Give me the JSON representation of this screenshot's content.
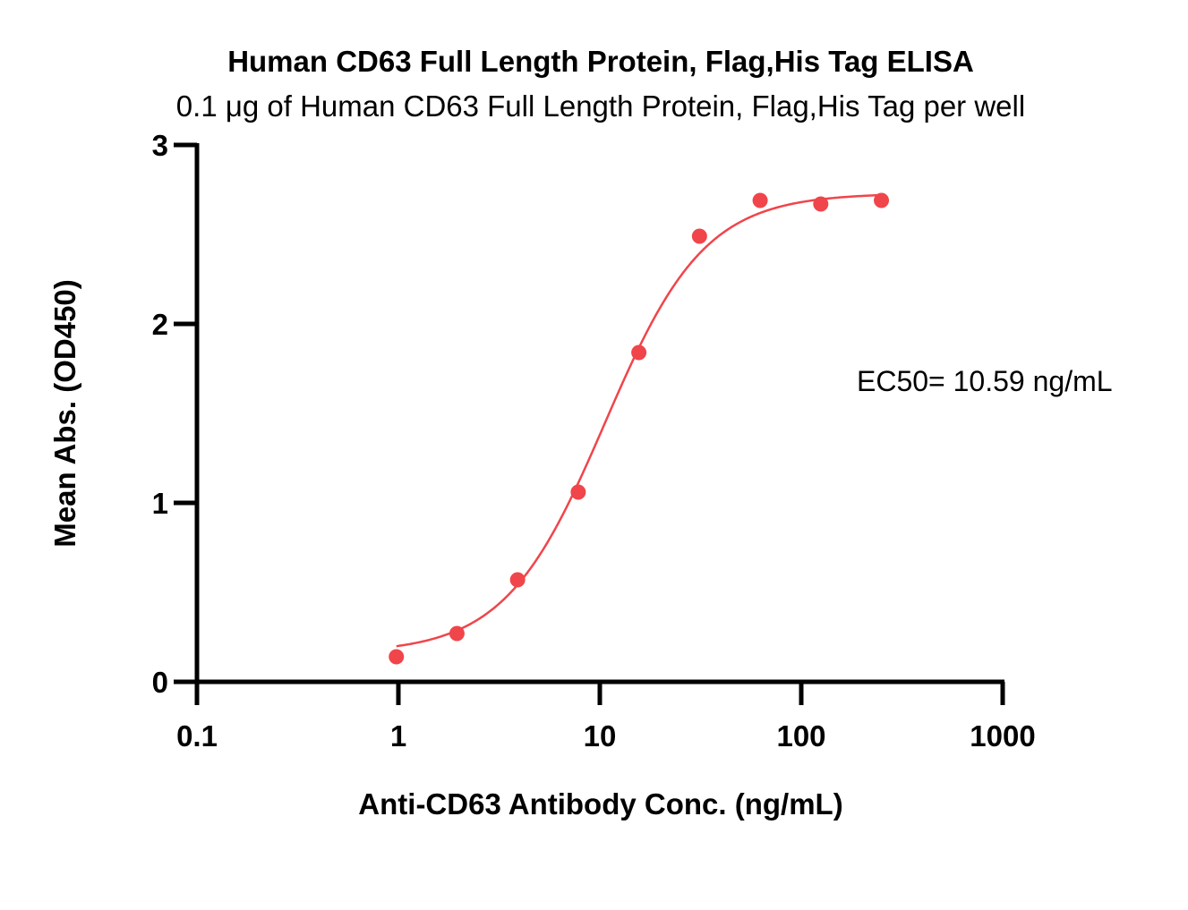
{
  "chart_data": {
    "type": "scatter",
    "title": "Human CD63 Full Length Protein, Flag,His Tag ELISA",
    "subtitle": "0.1 μg of Human CD63 Full Length Protein, Flag,His Tag per well",
    "xlabel": "Anti-CD63 Antibody Conc. (ng/mL)",
    "ylabel": "Mean Abs. (OD450)",
    "xscale": "log",
    "xlim": [
      0.1,
      1000
    ],
    "ylim": [
      0,
      3
    ],
    "x_ticks": [
      {
        "value": 0.1,
        "label": "0.1"
      },
      {
        "value": 1,
        "label": "1"
      },
      {
        "value": 10,
        "label": "10"
      },
      {
        "value": 100,
        "label": "100"
      },
      {
        "value": 1000,
        "label": "1000"
      }
    ],
    "y_ticks": [
      {
        "value": 0,
        "label": "0"
      },
      {
        "value": 1,
        "label": "1"
      },
      {
        "value": 2,
        "label": "2"
      },
      {
        "value": 3,
        "label": "3"
      }
    ],
    "grid": false,
    "series": [
      {
        "color": "#f0454a",
        "marker": "circle",
        "x": [
          0.977,
          1.953,
          3.906,
          7.813,
          15.625,
          31.25,
          62.5,
          125,
          250
        ],
        "y": [
          0.14,
          0.27,
          0.57,
          1.06,
          1.84,
          2.49,
          2.69,
          2.67,
          2.69
        ],
        "fit": {
          "model": "4PL",
          "bottom": 0.16,
          "top": 2.73,
          "ec50": 10.59,
          "hill": 1.75
        }
      }
    ],
    "annotation": "EC50= 10.59 ng/mL"
  }
}
